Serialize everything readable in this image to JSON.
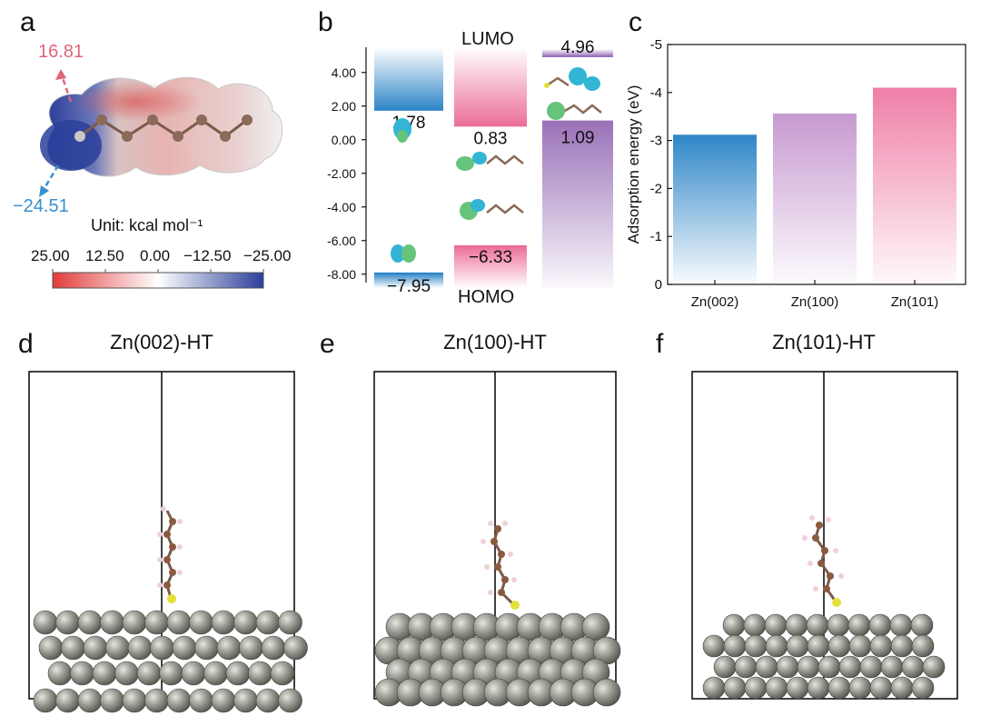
{
  "panels": {
    "a": {
      "letter": "a",
      "esp_max": "16.81",
      "esp_min": "−24.51",
      "unit_label": "Unit: kcal mol⁻¹",
      "colorbar_ticks": [
        "25.00",
        "12.50",
        "0.00",
        "−12.50",
        "−25.00"
      ],
      "colors": {
        "positive": "#e23b3b",
        "neutral": "#ffffff",
        "negative": "#2a3f9a",
        "max_arrow": "#e0657a",
        "min_arrow": "#3a8fd0"
      }
    },
    "b": {
      "letter": "b",
      "lumo_label": "LUMO",
      "homo_label": "HOMO",
      "y_ticks": [
        "4.00",
        "2.00",
        "0.00",
        "-2.00",
        "-4.00",
        "-6.00",
        "-8.00"
      ],
      "colors": {
        "blue": "#2f86c8",
        "pink": "#ec6e9a",
        "purple": "#9a72b8"
      }
    },
    "c": {
      "letter": "c"
    },
    "d": {
      "letter": "d",
      "title": "Zn(002)-HT"
    },
    "e": {
      "letter": "e",
      "title": "Zn(100)-HT"
    },
    "f": {
      "letter": "f",
      "title": "Zn(101)-HT"
    }
  },
  "chart_data": [
    {
      "type": "bar",
      "panel": "b",
      "ylim": [
        -8.5,
        5.5
      ],
      "y_ticks": [
        4,
        2,
        0,
        -2,
        -4,
        -6,
        -8
      ],
      "grid": false,
      "series": [
        {
          "lumo": 1.78,
          "homo": -7.95,
          "lumo_label": "1.78",
          "homo_label": "−7.95",
          "color": "#2f86c8"
        },
        {
          "lumo": 0.83,
          "homo": -6.33,
          "lumo_label": "0.83",
          "homo_label": "−6.33",
          "color": "#ec6e9a"
        },
        {
          "lumo": 4.96,
          "homo": 1.09,
          "lumo_label": "4.96",
          "homo_label": "1.09",
          "color": "#9a72b8"
        }
      ]
    },
    {
      "type": "bar",
      "panel": "c",
      "categories": [
        "Zn(002)",
        "Zn(100)",
        "Zn(101)"
      ],
      "values": [
        -3.12,
        -3.56,
        -4.1
      ],
      "ylabel": "Adsorption energy (eV)",
      "ylim": [
        0,
        -5
      ],
      "y_ticks": [
        "0",
        "-1",
        "-2",
        "-3",
        "-4",
        "-5"
      ],
      "grid": false,
      "bar_colors": [
        "#2f86c8",
        "#c79ad0",
        "#ef7fa8"
      ]
    }
  ]
}
